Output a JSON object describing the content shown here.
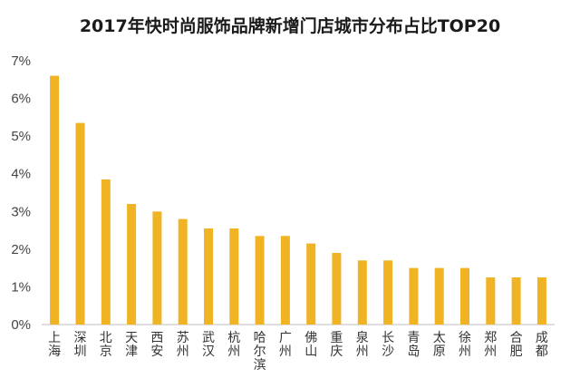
{
  "chart_data": {
    "type": "bar",
    "title": "2017年快时尚服饰品牌新增门店城市分布占比TOP20",
    "categories": [
      "上海",
      "深圳",
      "北京",
      "天津",
      "西安",
      "苏州",
      "武汉",
      "杭州",
      "哈尔滨",
      "广州",
      "佛山",
      "重庆",
      "泉州",
      "长沙",
      "青岛",
      "太原",
      "徐州",
      "郑州",
      "合肥",
      "成都"
    ],
    "values": [
      6.6,
      5.35,
      3.85,
      3.2,
      3.0,
      2.8,
      2.55,
      2.55,
      2.35,
      2.35,
      2.15,
      1.9,
      1.7,
      1.7,
      1.5,
      1.5,
      1.5,
      1.25,
      1.25,
      1.25
    ],
    "ylim": [
      0,
      7
    ],
    "y_ticks": [
      "0%",
      "1%",
      "2%",
      "3%",
      "4%",
      "5%",
      "6%",
      "7%"
    ],
    "grid": false,
    "bar_color": "#F0B323"
  }
}
